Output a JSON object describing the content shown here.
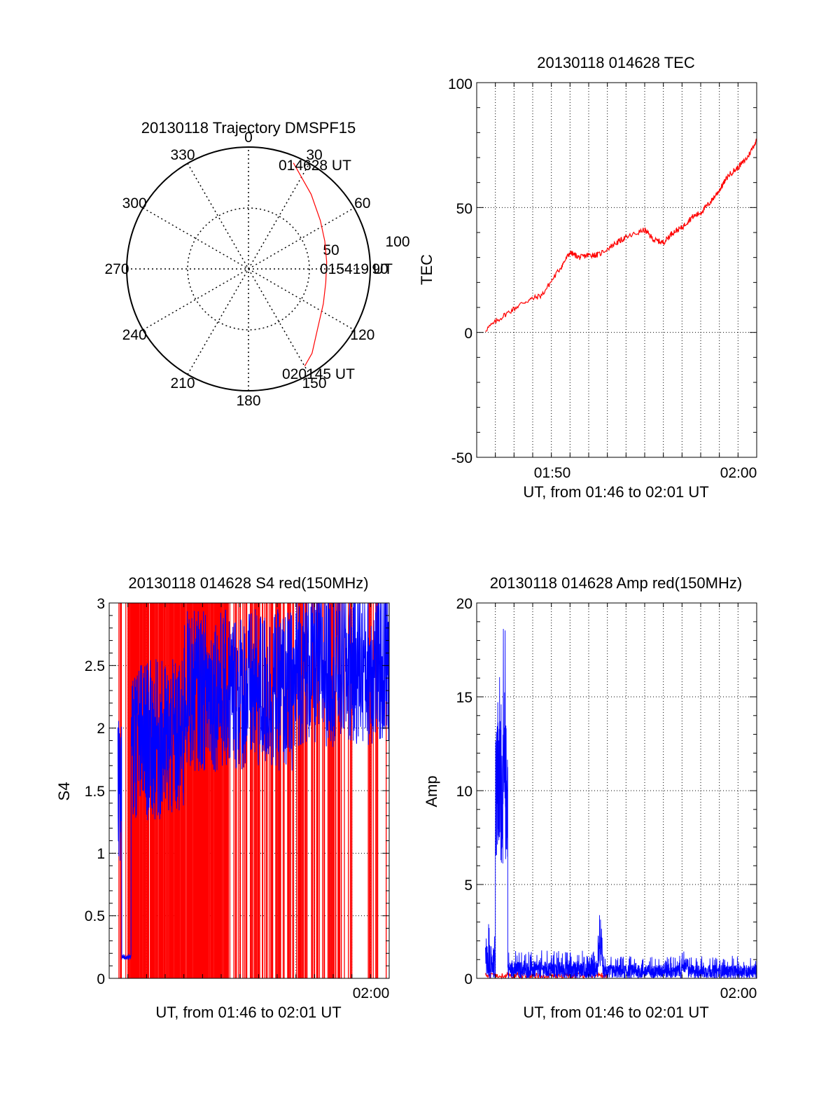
{
  "colors": {
    "red": "#ff0000",
    "blue": "#0000ff",
    "axis": "#000000",
    "grid": "#000000"
  },
  "chart_data": [
    {
      "id": "trajectory",
      "type": "polar",
      "title": "20130118 Trajectory DMSPF15",
      "angle_labels": [
        "0",
        "30",
        "60",
        "90",
        "120",
        "150",
        "180",
        "210",
        "240",
        "270",
        "300",
        "330"
      ],
      "radial_labels": [
        "50",
        "100"
      ],
      "point_labels": [
        "014628 UT",
        "015419 UT",
        "020145 UT"
      ],
      "series": [
        {
          "color": "red",
          "points": [
            [
              23,
              85
            ],
            [
              40,
              72
            ],
            [
              56,
              64
            ],
            [
              70,
              60
            ],
            [
              85,
              58
            ],
            [
              100,
              58
            ],
            [
              115,
              61
            ],
            [
              130,
              67
            ],
            [
              143,
              78
            ],
            [
              150,
              83
            ]
          ]
        }
      ]
    },
    {
      "id": "tec",
      "type": "line",
      "title": "20130118 014628 TEC",
      "xlabel": "UT, from 01:46 to 02:01 UT",
      "ylabel": "TEC",
      "x_ticks": [
        "01:50",
        "02:00"
      ],
      "y_ticks": [
        "100",
        "50",
        "0",
        "-50"
      ],
      "ylim": [
        -50,
        100
      ],
      "xlim": [
        "01:46:00",
        "02:01:00"
      ],
      "series": [
        {
          "color": "red",
          "x": [
            "01:46:28",
            "01:47:30",
            "01:48:30",
            "01:49:30",
            "01:50:30",
            "01:51:00",
            "01:51:30",
            "01:52:00",
            "01:52:30",
            "01:53:30",
            "01:54:00",
            "01:55:00",
            "01:55:30",
            "01:56:00",
            "01:56:30",
            "01:57:00",
            "01:57:30",
            "01:58:00",
            "01:58:30",
            "01:59:00",
            "01:59:30",
            "02:00:00",
            "02:00:30",
            "02:01:00"
          ],
          "y": [
            1,
            7,
            12,
            15,
            26,
            32,
            30,
            31,
            31,
            36,
            38,
            41,
            37,
            36,
            40,
            42,
            46,
            48,
            52,
            57,
            63,
            66,
            70,
            77
          ]
        }
      ]
    },
    {
      "id": "s4",
      "type": "line",
      "title": "20130118 014628 S4 red(150MHz)",
      "xlabel": "UT, from 01:46 to 02:01 UT",
      "ylabel": "S4",
      "x_ticks": [
        "02:00"
      ],
      "y_ticks": [
        "3",
        "2.5",
        "2",
        "1.5",
        "1",
        "0.5",
        "0"
      ],
      "ylim": [
        0,
        3
      ],
      "xlim": [
        "01:46:00",
        "02:01:00"
      ],
      "series": [
        {
          "color": "red",
          "style": "dense vertical spikes",
          "x_range": [
            "01:46:28",
            "02:01:00"
          ],
          "y_range": [
            0,
            3
          ]
        },
        {
          "color": "blue",
          "style": "noisy trace",
          "x_range": [
            "01:46:28",
            "02:01:00"
          ],
          "y_range": [
            0.15,
            3
          ]
        }
      ]
    },
    {
      "id": "amp",
      "type": "line",
      "title": "20130118 014628 Amp red(150MHz)",
      "xlabel": "UT, from 01:46 to 02:01 UT",
      "ylabel": "Amp",
      "x_ticks": [
        "02:00"
      ],
      "y_ticks": [
        "20",
        "15",
        "10",
        "5",
        "0"
      ],
      "ylim": [
        0,
        20
      ],
      "xlim": [
        "01:46:00",
        "02:01:00"
      ],
      "series": [
        {
          "color": "blue",
          "style": "noisy trace",
          "segments": [
            {
              "from": "01:46:28",
              "to": "01:47:00",
              "low": 0,
              "high": 3
            },
            {
              "from": "01:47:00",
              "to": "01:47:40",
              "low": 6,
              "high": 19
            },
            {
              "from": "01:47:40",
              "to": "01:52:30",
              "low": 0,
              "high": 1.5
            },
            {
              "from": "01:52:30",
              "to": "01:52:45",
              "low": 0.5,
              "high": 3.5
            },
            {
              "from": "01:52:45",
              "to": "01:57:00",
              "low": 0,
              "high": 1.2
            },
            {
              "from": "01:57:00",
              "to": "01:57:20",
              "low": 0.3,
              "high": 1.6
            },
            {
              "from": "01:57:20",
              "to": "02:01:00",
              "low": 0,
              "high": 1.2
            }
          ]
        },
        {
          "color": "red",
          "style": "near-zero trace",
          "x_range": [
            "01:46:28",
            "01:53:00"
          ],
          "y_range": [
            0,
            0.3
          ]
        }
      ]
    }
  ]
}
